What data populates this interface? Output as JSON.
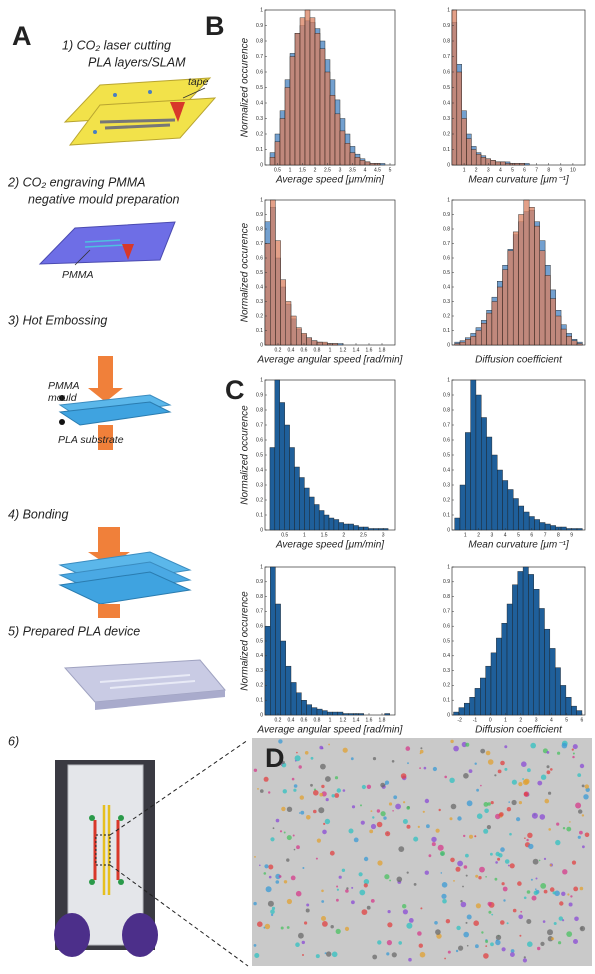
{
  "panels": {
    "a": {
      "label": "A",
      "steps": [
        "1) CO₂ laser cutting",
        "PLA layers/SLAM",
        "2) CO₂ engraving PMMA",
        "negative mould preparation",
        "3) Hot Embossing",
        "4) Bonding",
        "5) Prepared PLA device",
        "6)"
      ],
      "annotations": [
        "tape",
        "PMMA",
        "PMMA",
        "mould",
        "PLA substrate"
      ]
    },
    "b": {
      "label": "B"
    },
    "c": {
      "label": "C"
    },
    "d": {
      "label": "D"
    }
  },
  "chart_data": [
    {
      "type": "histogram",
      "ylabel": "Normalized occurence",
      "xlabel": "Average speed [μm/min]",
      "bins": [
        0.2,
        0.4,
        0.6,
        0.8,
        1.0,
        1.2,
        1.4,
        1.6,
        1.8,
        2.0,
        2.2,
        2.4,
        2.6,
        2.8,
        3.0,
        3.2,
        3.4,
        3.6,
        3.8,
        4.0,
        4.2,
        4.4,
        4.6,
        4.8,
        5.0
      ],
      "series": [
        {
          "color": "#5b8fc7",
          "values": [
            0.08,
            0.2,
            0.35,
            0.55,
            0.72,
            0.85,
            0.9,
            0.93,
            0.92,
            0.88,
            0.8,
            0.68,
            0.55,
            0.42,
            0.3,
            0.2,
            0.12,
            0.07,
            0.04,
            0.02,
            0.01,
            0.01,
            0.01,
            0
          ]
        },
        {
          "color": "#d98060",
          "values": [
            0.05,
            0.15,
            0.3,
            0.5,
            0.7,
            0.85,
            0.95,
            1.0,
            0.95,
            0.85,
            0.75,
            0.6,
            0.45,
            0.33,
            0.22,
            0.14,
            0.08,
            0.05,
            0.03,
            0.02,
            0.01,
            0.01,
            0,
            0
          ]
        }
      ],
      "xlim": [
        0,
        5.2
      ],
      "ylim": [
        0,
        1
      ],
      "xticks": [
        0.5,
        1,
        1.5,
        2,
        2.5,
        3,
        3.5,
        4,
        4.5,
        5
      ],
      "yticks": [
        0,
        0.1,
        0.2,
        0.3,
        0.4,
        0.5,
        0.6,
        0.7,
        0.8,
        0.9,
        1
      ]
    },
    {
      "type": "histogram",
      "xlabel": "Mean curvature [μm⁻¹]",
      "bins": [
        0,
        0.4,
        0.8,
        1.2,
        1.6,
        2.0,
        2.4,
        2.8,
        3.2,
        3.6,
        4.0,
        4.4,
        4.8,
        5.2,
        5.6,
        6.0,
        6.4,
        6.8,
        7.2,
        7.6,
        8.0,
        8.4,
        8.8,
        9.2,
        9.6
      ],
      "series": [
        {
          "color": "#5b8fc7",
          "values": [
            0.92,
            0.65,
            0.35,
            0.2,
            0.12,
            0.08,
            0.06,
            0.04,
            0.03,
            0.02,
            0.02,
            0.02,
            0.01,
            0.01,
            0.01,
            0.01,
            0,
            0,
            0,
            0,
            0,
            0,
            0,
            0
          ]
        },
        {
          "color": "#d98060",
          "values": [
            1,
            0.6,
            0.3,
            0.17,
            0.1,
            0.07,
            0.05,
            0.04,
            0.03,
            0.02,
            0.02,
            0.01,
            0.01,
            0.01,
            0.01,
            0,
            0,
            0,
            0,
            0,
            0,
            0,
            0,
            0
          ]
        }
      ],
      "xlim": [
        0,
        11
      ],
      "ylim": [
        0,
        1
      ],
      "xticks": [
        1,
        2,
        3,
        4,
        5,
        6,
        7,
        8,
        9,
        10
      ],
      "yticks": [
        0,
        0.1,
        0.2,
        0.3,
        0.4,
        0.5,
        0.6,
        0.7,
        0.8,
        0.9,
        1
      ]
    },
    {
      "type": "histogram",
      "ylabel": "Normalized occurence",
      "xlabel": "Average angular speed [rad/min]",
      "bins": [
        0,
        0.08,
        0.16,
        0.24,
        0.32,
        0.4,
        0.48,
        0.56,
        0.64,
        0.72,
        0.8,
        0.88,
        0.96,
        1.04,
        1.12,
        1.2,
        1.28,
        1.36,
        1.44,
        1.52,
        1.6,
        1.68,
        1.76,
        1.84,
        1.92
      ],
      "series": [
        {
          "color": "#5b8fc7",
          "values": [
            0.85,
            0.95,
            0.6,
            0.4,
            0.28,
            0.18,
            0.11,
            0.07,
            0.05,
            0.03,
            0.02,
            0.01,
            0.01,
            0.01,
            0.01,
            0,
            0,
            0,
            0,
            0,
            0,
            0,
            0,
            0
          ]
        },
        {
          "color": "#d98060",
          "values": [
            0.7,
            1,
            0.72,
            0.45,
            0.3,
            0.2,
            0.12,
            0.08,
            0.05,
            0.03,
            0.02,
            0.02,
            0.01,
            0.01,
            0,
            0,
            0,
            0,
            0,
            0,
            0,
            0,
            0,
            0
          ]
        }
      ],
      "xlim": [
        0,
        2
      ],
      "ylim": [
        0,
        1
      ],
      "xticks": [
        0.2,
        0.4,
        0.6,
        0.8,
        1,
        1.2,
        1.4,
        1.6,
        1.8
      ],
      "yticks": [
        0,
        0.1,
        0.2,
        0.3,
        0.4,
        0.5,
        0.6,
        0.7,
        0.8,
        0.9,
        1
      ]
    },
    {
      "type": "histogram",
      "xlabel": "Diffusion coefficient",
      "bins": [
        -2.8,
        -2.4,
        -2.0,
        -1.6,
        -1.2,
        -0.8,
        -0.4,
        0,
        0.4,
        0.8,
        1.2,
        1.6,
        2.0,
        2.4,
        2.8,
        3.2,
        3.6,
        4.0,
        4.4,
        4.8,
        5.2,
        5.6,
        6.0,
        6.4,
        6.8
      ],
      "series": [
        {
          "color": "#5b8fc7",
          "values": [
            0.02,
            0.03,
            0.05,
            0.08,
            0.12,
            0.17,
            0.24,
            0.33,
            0.44,
            0.55,
            0.66,
            0.76,
            0.85,
            0.92,
            0.93,
            0.85,
            0.72,
            0.55,
            0.38,
            0.24,
            0.14,
            0.08,
            0.04,
            0.02
          ]
        },
        {
          "color": "#d98060",
          "values": [
            0.01,
            0.02,
            0.04,
            0.06,
            0.1,
            0.15,
            0.22,
            0.3,
            0.4,
            0.52,
            0.65,
            0.78,
            0.9,
            1,
            0.95,
            0.82,
            0.65,
            0.48,
            0.32,
            0.2,
            0.11,
            0.06,
            0.03,
            0.01
          ]
        }
      ],
      "xlim": [
        -3,
        7
      ],
      "ylim": [
        0,
        1
      ],
      "yticks": [
        0,
        0.1,
        0.2,
        0.3,
        0.4,
        0.5,
        0.6,
        0.7,
        0.8,
        0.9,
        1
      ]
    },
    {
      "type": "histogram",
      "ylabel": "Normalized occurence",
      "xlabel": "Average speed [μm/min]",
      "bins": [
        0.125,
        0.25,
        0.375,
        0.5,
        0.625,
        0.75,
        0.875,
        1,
        1.125,
        1.25,
        1.375,
        1.5,
        1.625,
        1.75,
        1.875,
        2,
        2.125,
        2.25,
        2.375,
        2.5,
        2.625,
        2.75,
        2.875,
        3,
        3.125
      ],
      "color": "#1f5f9a",
      "values": [
        0.55,
        1,
        0.85,
        0.7,
        0.55,
        0.42,
        0.35,
        0.28,
        0.22,
        0.17,
        0.13,
        0.1,
        0.08,
        0.07,
        0.05,
        0.04,
        0.04,
        0.03,
        0.02,
        0.02,
        0.01,
        0.01,
        0.01,
        0.01
      ],
      "xlim": [
        0,
        3.3
      ],
      "ylim": [
        0,
        1
      ],
      "xticks": [
        0.5,
        1,
        1.5,
        2,
        2.5,
        3
      ],
      "yticks": [
        0,
        0.1,
        0.2,
        0.3,
        0.4,
        0.5,
        0.6,
        0.7,
        0.8,
        0.9,
        1
      ]
    },
    {
      "type": "histogram",
      "xlabel": "Mean curvature [μm⁻¹]",
      "bins": [
        0.2,
        0.6,
        1.0,
        1.4,
        1.8,
        2.2,
        2.6,
        3.0,
        3.4,
        3.8,
        4.2,
        4.6,
        5.0,
        5.4,
        5.8,
        6.2,
        6.6,
        7.0,
        7.4,
        7.8,
        8.2,
        8.6,
        9.0,
        9.4,
        9.8
      ],
      "color": "#1f5f9a",
      "values": [
        0.08,
        0.3,
        0.65,
        1,
        0.9,
        0.75,
        0.62,
        0.5,
        0.4,
        0.33,
        0.27,
        0.21,
        0.16,
        0.12,
        0.09,
        0.07,
        0.05,
        0.04,
        0.03,
        0.02,
        0.02,
        0.01,
        0.01,
        0.01
      ],
      "xlim": [
        0,
        10
      ],
      "ylim": [
        0,
        1
      ],
      "xticks": [
        1,
        2,
        3,
        4,
        5,
        6,
        7,
        8,
        9
      ],
      "yticks": [
        0,
        0.1,
        0.2,
        0.3,
        0.4,
        0.5,
        0.6,
        0.7,
        0.8,
        0.9,
        1
      ]
    },
    {
      "type": "histogram",
      "ylabel": "Normalized occurence",
      "xlabel": "Average angular speed [rad/min]",
      "bins": [
        0,
        0.08,
        0.16,
        0.24,
        0.32,
        0.4,
        0.48,
        0.56,
        0.64,
        0.72,
        0.8,
        0.88,
        0.96,
        1.04,
        1.12,
        1.2,
        1.28,
        1.36,
        1.44,
        1.52,
        1.6,
        1.68,
        1.76,
        1.84,
        1.92
      ],
      "color": "#1f5f9a",
      "values": [
        0.6,
        1,
        0.75,
        0.5,
        0.33,
        0.22,
        0.15,
        0.1,
        0.07,
        0.05,
        0.04,
        0.03,
        0.02,
        0.02,
        0.02,
        0.01,
        0.01,
        0.01,
        0.01,
        0,
        0,
        0,
        0,
        0.01
      ],
      "xlim": [
        0,
        2
      ],
      "ylim": [
        0,
        1
      ],
      "xticks": [
        0.2,
        0.4,
        0.6,
        0.8,
        1,
        1.2,
        1.4,
        1.6,
        1.8
      ],
      "yticks": [
        0,
        0.1,
        0.2,
        0.3,
        0.4,
        0.5,
        0.6,
        0.7,
        0.8,
        0.9,
        1
      ]
    },
    {
      "type": "histogram",
      "xlabel": "Diffusion coefficient",
      "bins": [
        -2.4,
        -2.05,
        -1.7,
        -1.35,
        -1,
        -0.65,
        -0.3,
        0.05,
        0.4,
        0.75,
        1.1,
        1.45,
        1.8,
        2.15,
        2.5,
        2.85,
        3.2,
        3.55,
        3.9,
        4.25,
        4.6,
        4.95,
        5.3,
        5.65,
        6
      ],
      "color": "#1f5f9a",
      "values": [
        0.02,
        0.05,
        0.08,
        0.12,
        0.18,
        0.25,
        0.33,
        0.42,
        0.52,
        0.62,
        0.75,
        0.88,
        0.97,
        1,
        0.95,
        0.85,
        0.72,
        0.58,
        0.45,
        0.32,
        0.2,
        0.12,
        0.06,
        0.03
      ],
      "xlim": [
        -2.5,
        6.2
      ],
      "ylim": [
        0,
        1
      ],
      "xticks": [
        -2,
        -1,
        0,
        1,
        2,
        3,
        4,
        5,
        6
      ],
      "yticks": [
        0,
        0.1,
        0.2,
        0.3,
        0.4,
        0.5,
        0.6,
        0.7,
        0.8,
        0.9,
        1
      ]
    }
  ]
}
